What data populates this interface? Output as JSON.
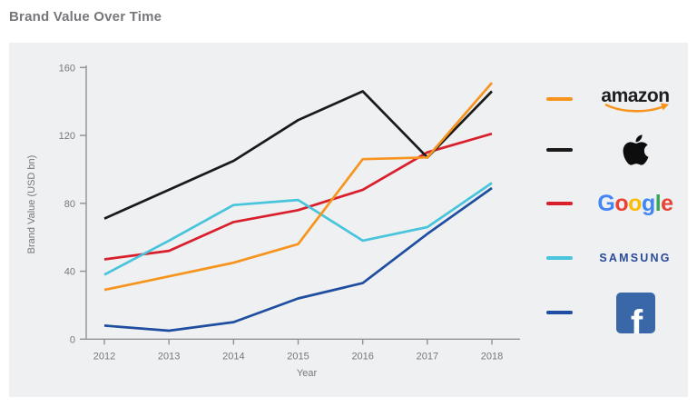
{
  "page": {
    "title": "Brand Value Over Time"
  },
  "chart_data": {
    "type": "line",
    "title": "Brand Value Over Time",
    "xlabel": "Year",
    "ylabel": "Brand Value (USD bn)",
    "x": [
      2012,
      2013,
      2014,
      2015,
      2016,
      2017,
      2018
    ],
    "ylim": [
      0,
      160
    ],
    "y_ticks": [
      0,
      40,
      80,
      120,
      160
    ],
    "grid": false,
    "legend_position": "right",
    "series": [
      {
        "name": "Amazon",
        "color": "#f7941e",
        "values": [
          29,
          37,
          45,
          56,
          106,
          107,
          151
        ]
      },
      {
        "name": "Apple",
        "color": "#1a1a1a",
        "values": [
          71,
          88,
          105,
          129,
          146,
          107,
          146
        ]
      },
      {
        "name": "Google",
        "color": "#d91f2b",
        "values": [
          47,
          52,
          69,
          76,
          88,
          110,
          121
        ]
      },
      {
        "name": "Samsung",
        "color": "#48c4db",
        "values": [
          38,
          58,
          79,
          82,
          58,
          66,
          92
        ]
      },
      {
        "name": "Facebook",
        "color": "#1f4d9f",
        "values": [
          8,
          5,
          10,
          24,
          33,
          62,
          89
        ]
      }
    ]
  },
  "legend": {
    "amazon_text": "amazon",
    "google_letters": [
      {
        "ch": "G",
        "color": "#4285f4"
      },
      {
        "ch": "o",
        "color": "#ea4335"
      },
      {
        "ch": "o",
        "color": "#fbbc05"
      },
      {
        "ch": "g",
        "color": "#4285f4"
      },
      {
        "ch": "l",
        "color": "#34a853"
      },
      {
        "ch": "e",
        "color": "#ea4335"
      }
    ],
    "samsung_text": "SAMSUNG",
    "facebook_letter": "f"
  },
  "style": {
    "axis_color": "#8f9194",
    "tick_label_color": "#77787b",
    "panel_bg": "#eef0f2"
  }
}
